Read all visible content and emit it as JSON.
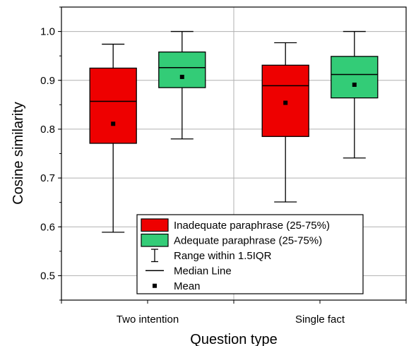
{
  "chart_data": {
    "type": "box",
    "xlabel": "Question type",
    "ylabel": "Cosine similarity",
    "ylim": [
      0.45,
      1.05
    ],
    "yticks": [
      0.5,
      0.6,
      0.7,
      0.8,
      0.9,
      1.0
    ],
    "ytick_labels": [
      "0.5",
      "0.6",
      "0.7",
      "0.8",
      "0.9",
      "1.0"
    ],
    "categories": [
      "Two intention",
      "Single fact"
    ],
    "grid": true,
    "legend_position": "bottom-center",
    "series": [
      {
        "name": "Inadequate paraphrase (25-75%)",
        "color": "#ee0000",
        "boxes": [
          {
            "whisker_low": 0.589,
            "q1": 0.771,
            "median": 0.857,
            "q3": 0.925,
            "whisker_high": 0.974,
            "mean": 0.811
          },
          {
            "whisker_low": 0.651,
            "q1": 0.785,
            "median": 0.889,
            "q3": 0.931,
            "whisker_high": 0.977,
            "mean": 0.854
          }
        ]
      },
      {
        "name": "Adequate paraphrase (25-75%)",
        "color": "#33cc77",
        "boxes": [
          {
            "whisker_low": 0.78,
            "q1": 0.885,
            "median": 0.926,
            "q3": 0.958,
            "whisker_high": 1.0,
            "mean": 0.907
          },
          {
            "whisker_low": 0.741,
            "q1": 0.864,
            "median": 0.912,
            "q3": 0.949,
            "whisker_high": 1.0,
            "mean": 0.891
          }
        ]
      }
    ],
    "legend": [
      {
        "label": "Inadequate paraphrase (25-75%)",
        "symbol": "box",
        "color": "#ee0000"
      },
      {
        "label": "Adequate paraphrase (25-75%)",
        "symbol": "box",
        "color": "#33cc77"
      },
      {
        "label": "Range within 1.5IQR",
        "symbol": "whisker"
      },
      {
        "label": "Median Line",
        "symbol": "line"
      },
      {
        "label": "Mean",
        "symbol": "dot"
      }
    ]
  }
}
